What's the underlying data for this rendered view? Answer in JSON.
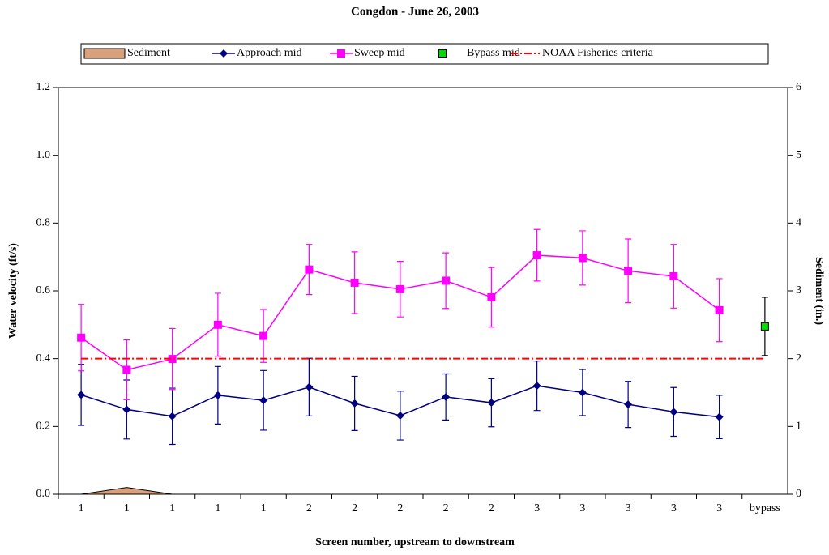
{
  "chart_data": {
    "type": "line",
    "title": "Congdon - June 26, 2003",
    "x_label": "Screen number, upstream to downstream",
    "y_label": "Water velocity (ft/s)",
    "y2_label": "Sediment (in.)",
    "categories": [
      "1",
      "1",
      "1",
      "1",
      "1",
      "2",
      "2",
      "2",
      "2",
      "2",
      "3",
      "3",
      "3",
      "3",
      "3",
      "bypass"
    ],
    "ylim": [
      0,
      1.2
    ],
    "yticks": [
      {
        "value": 0,
        "label": "0.0"
      },
      {
        "value": 0.2,
        "label": "0.2"
      },
      {
        "value": 0.4,
        "label": "0.4"
      },
      {
        "value": 0.6,
        "label": "0.6"
      },
      {
        "value": 0.8,
        "label": "0.8"
      },
      {
        "value": 1,
        "label": "1.0"
      },
      {
        "value": 1.2,
        "label": "1.2"
      }
    ],
    "y2lim": [
      0,
      6
    ],
    "y2ticks": [
      0,
      1,
      2,
      3,
      4,
      5,
      6
    ],
    "grid": false,
    "legend": "top",
    "series": [
      {
        "name": "Sediment",
        "kind": "area",
        "axis": "y2",
        "color": "#d9a07c",
        "values": [
          0,
          0.1,
          0,
          0,
          0,
          0,
          0,
          0,
          0,
          0,
          0,
          0,
          0,
          0,
          0,
          0
        ]
      },
      {
        "name": "Approach mid",
        "kind": "line",
        "marker": "diamond",
        "color": "#000080",
        "values": [
          0.293,
          0.25,
          0.23,
          0.292,
          0.277,
          0.316,
          0.268,
          0.232,
          0.287,
          0.27,
          0.32,
          0.3,
          0.265,
          0.243,
          0.228,
          null
        ],
        "errors": [
          0.09,
          0.087,
          0.083,
          0.085,
          0.088,
          0.085,
          0.08,
          0.072,
          0.068,
          0.071,
          0.073,
          0.068,
          0.068,
          0.072,
          0.064,
          null
        ]
      },
      {
        "name": "Sweep mid",
        "kind": "line",
        "marker": "square",
        "color": "#ff00ff",
        "values": [
          0.462,
          0.367,
          0.399,
          0.5,
          0.467,
          0.663,
          0.624,
          0.605,
          0.63,
          0.581,
          0.705,
          0.697,
          0.659,
          0.643,
          0.543,
          null
        ],
        "errors": [
          0.098,
          0.088,
          0.09,
          0.093,
          0.078,
          0.074,
          0.091,
          0.082,
          0.082,
          0.088,
          0.076,
          0.08,
          0.094,
          0.094,
          0.093,
          null
        ]
      },
      {
        "name": "Bypass mid",
        "kind": "points",
        "marker": "square",
        "color": "#00dd00",
        "values": [
          null,
          null,
          null,
          null,
          null,
          null,
          null,
          null,
          null,
          null,
          null,
          null,
          null,
          null,
          null,
          0.495
        ],
        "errors": [
          null,
          null,
          null,
          null,
          null,
          null,
          null,
          null,
          null,
          null,
          null,
          null,
          null,
          null,
          null,
          0.086
        ]
      },
      {
        "name": "NOAA Fisheries criteria",
        "kind": "dashdot",
        "color": "#ff0000",
        "values": [
          0.4,
          0.4,
          0.4,
          0.4,
          0.4,
          0.4,
          0.4,
          0.4,
          0.4,
          0.4,
          0.4,
          0.4,
          0.4,
          0.4,
          0.4,
          0.4
        ]
      }
    ]
  }
}
